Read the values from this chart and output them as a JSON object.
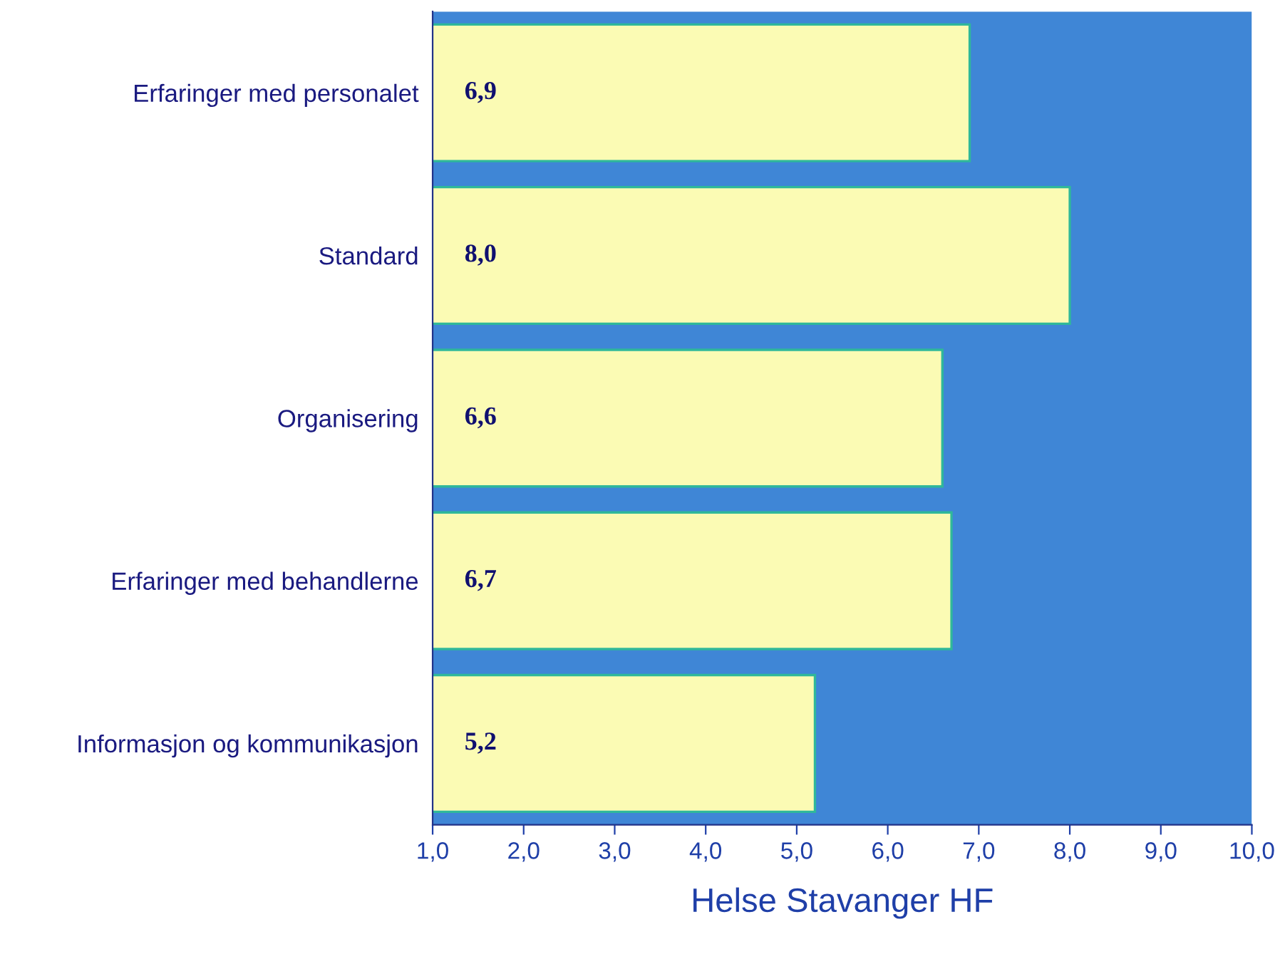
{
  "chart_data": {
    "type": "bar",
    "orientation": "horizontal",
    "xlabel": "Helse Stavanger HF",
    "categories": [
      "Erfaringer med personalet",
      "Standard",
      "Organisering",
      "Erfaringer med behandlerne",
      "Informasjon og kommunikasjon"
    ],
    "values": [
      6.9,
      8.0,
      6.6,
      6.7,
      5.2
    ],
    "value_labels": [
      "6,9",
      "8,0",
      "6,6",
      "6,7",
      "5,2"
    ],
    "color": "#fbfbb4",
    "xlim": [
      1,
      10
    ],
    "xticks": [
      {
        "value": 1,
        "label": "1,0"
      },
      {
        "value": 2,
        "label": "2,0"
      },
      {
        "value": 3,
        "label": "3,0"
      },
      {
        "value": 4,
        "label": "4,0"
      },
      {
        "value": 5,
        "label": "5,0"
      },
      {
        "value": 6,
        "label": "6,0"
      },
      {
        "value": 7,
        "label": "7,0"
      },
      {
        "value": 8,
        "label": "8,0"
      },
      {
        "value": 9,
        "label": "9,0"
      },
      {
        "value": 10,
        "label": "10,0"
      }
    ],
    "bands": [
      {
        "axis": "x",
        "from": 1,
        "to": 10,
        "color": "#3f86d6"
      }
    ],
    "grid": false,
    "legend": false
  }
}
